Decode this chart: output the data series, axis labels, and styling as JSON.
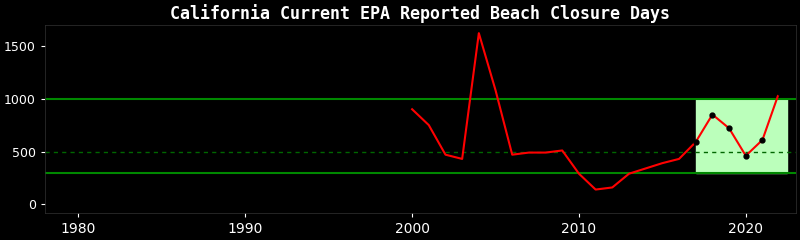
{
  "title": "California Current EPA Reported Beach Closure Days",
  "background_color": "#000000",
  "text_color": "#ffffff",
  "line_color": "#ff0000",
  "green_line_upper": 1000,
  "green_line_lower": 300,
  "dashed_line_value": 500,
  "highlight_start": 2017,
  "highlight_end": 2022.5,
  "highlight_color": "#bbffbb",
  "xlim": [
    1978,
    2023
  ],
  "ylim": [
    -80,
    1700
  ],
  "yticks": [
    0,
    500,
    1000,
    1500
  ],
  "xticks": [
    1980,
    1990,
    2000,
    2010,
    2020
  ],
  "years": [
    2000,
    2001,
    2002,
    2003,
    2004,
    2005,
    2006,
    2007,
    2008,
    2009,
    2010,
    2011,
    2012,
    2013,
    2014,
    2015,
    2016,
    2017,
    2018,
    2019,
    2020,
    2021,
    2022
  ],
  "values": [
    900,
    750,
    470,
    430,
    1620,
    1080,
    470,
    490,
    490,
    510,
    290,
    140,
    160,
    290,
    340,
    390,
    430,
    590,
    850,
    720,
    460,
    610,
    1060
  ],
  "highlight_years": [
    2017,
    2018,
    2019,
    2020,
    2021,
    2022
  ],
  "highlight_values": [
    590,
    850,
    720,
    460,
    610,
    1060
  ]
}
